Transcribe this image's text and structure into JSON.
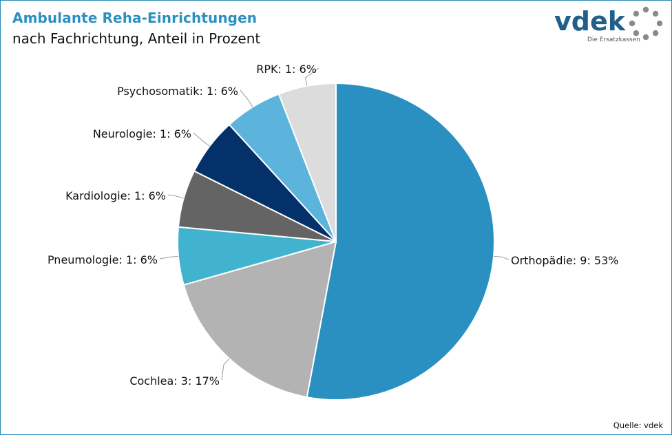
{
  "header": {
    "title": "Ambulante Reha-Einrichtungen",
    "subtitle": "nach Fachrichtung, Anteil in Prozent"
  },
  "logo": {
    "word": "vdek",
    "tagline": "Die Ersatzkassen",
    "color": "#1f5f8b",
    "ring_color": "#8a8a8a"
  },
  "source": "Quelle: vdek",
  "chart_data": {
    "type": "pie",
    "title": "Ambulante Reha-Einrichtungen",
    "subtitle": "nach Fachrichtung, Anteil in Prozent",
    "start": "12 o'clock",
    "direction": "clockwise",
    "slices": [
      {
        "name": "Orthopädie",
        "value": 9,
        "percent": 53,
        "label": "Orthopädie: 9: 53%",
        "color": "#2a8fc1"
      },
      {
        "name": "Cochlea",
        "value": 3,
        "percent": 17,
        "label": "Cochlea: 3: 17%",
        "color": "#b3b3b3"
      },
      {
        "name": "Pneumologie",
        "value": 1,
        "percent": 6,
        "label": "Pneumologie: 1: 6%",
        "color": "#41b3cf"
      },
      {
        "name": "Kardiologie",
        "value": 1,
        "percent": 6,
        "label": "Kardiologie: 1: 6%",
        "color": "#646464"
      },
      {
        "name": "Neurologie",
        "value": 1,
        "percent": 6,
        "label": "Neurologie: 1: 6%",
        "color": "#04316a"
      },
      {
        "name": "Psychosomatik",
        "value": 1,
        "percent": 6,
        "label": "Psychosomatik: 1: 6%",
        "color": "#5cb4dd"
      },
      {
        "name": "RPK",
        "value": 1,
        "percent": 6,
        "label": "RPK: 1: 6%",
        "color": "#dcdcdc"
      }
    ]
  }
}
